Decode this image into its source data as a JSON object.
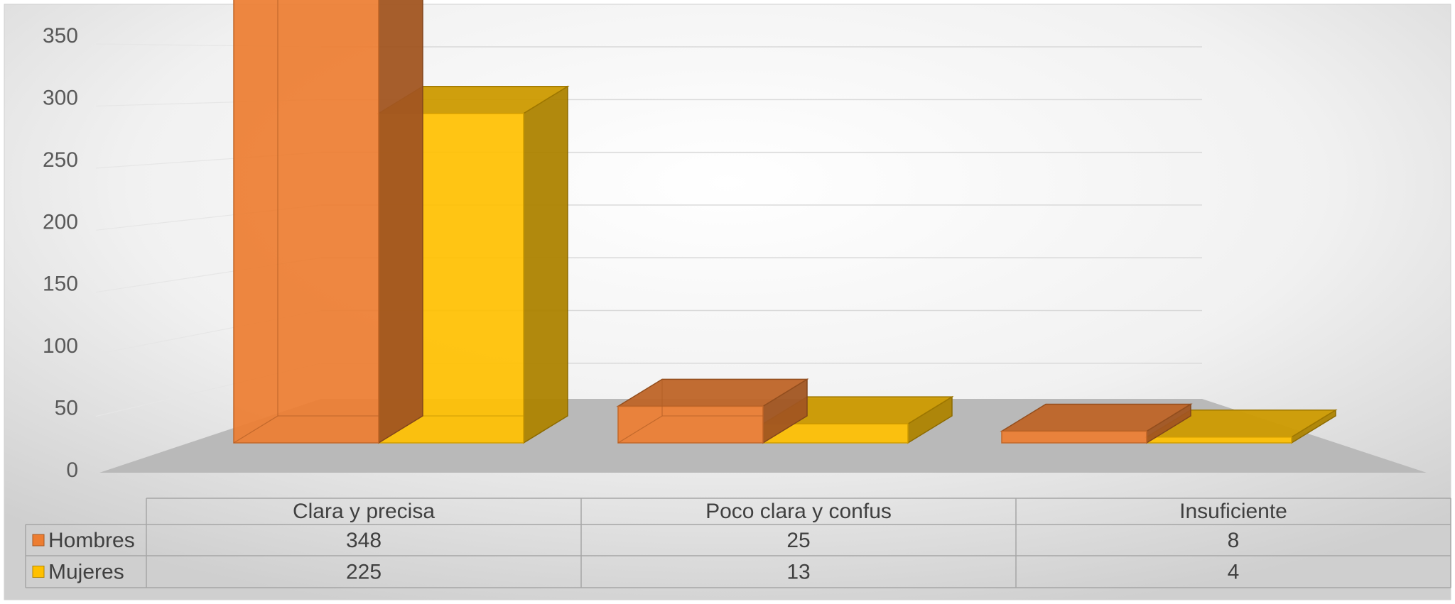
{
  "chart_data": {
    "type": "bar",
    "title": "",
    "xlabel": "",
    "ylabel": "",
    "categories": [
      "Clara y precisa",
      "Poco clara y confus",
      "Insuficiente"
    ],
    "series": [
      {
        "name": "Hombres",
        "values": [
          348,
          25,
          8
        ],
        "color": "#ED7D31"
      },
      {
        "name": "Mujeres",
        "values": [
          225,
          13,
          4
        ],
        "color": "#FFC000"
      }
    ],
    "ylim": [
      0,
      350
    ],
    "yticks": [
      "0",
      "50",
      "100",
      "150",
      "200",
      "250",
      "300",
      "350"
    ],
    "grid": true,
    "style": "3d-clustered-column",
    "legend": "data-table",
    "data_table": true
  }
}
